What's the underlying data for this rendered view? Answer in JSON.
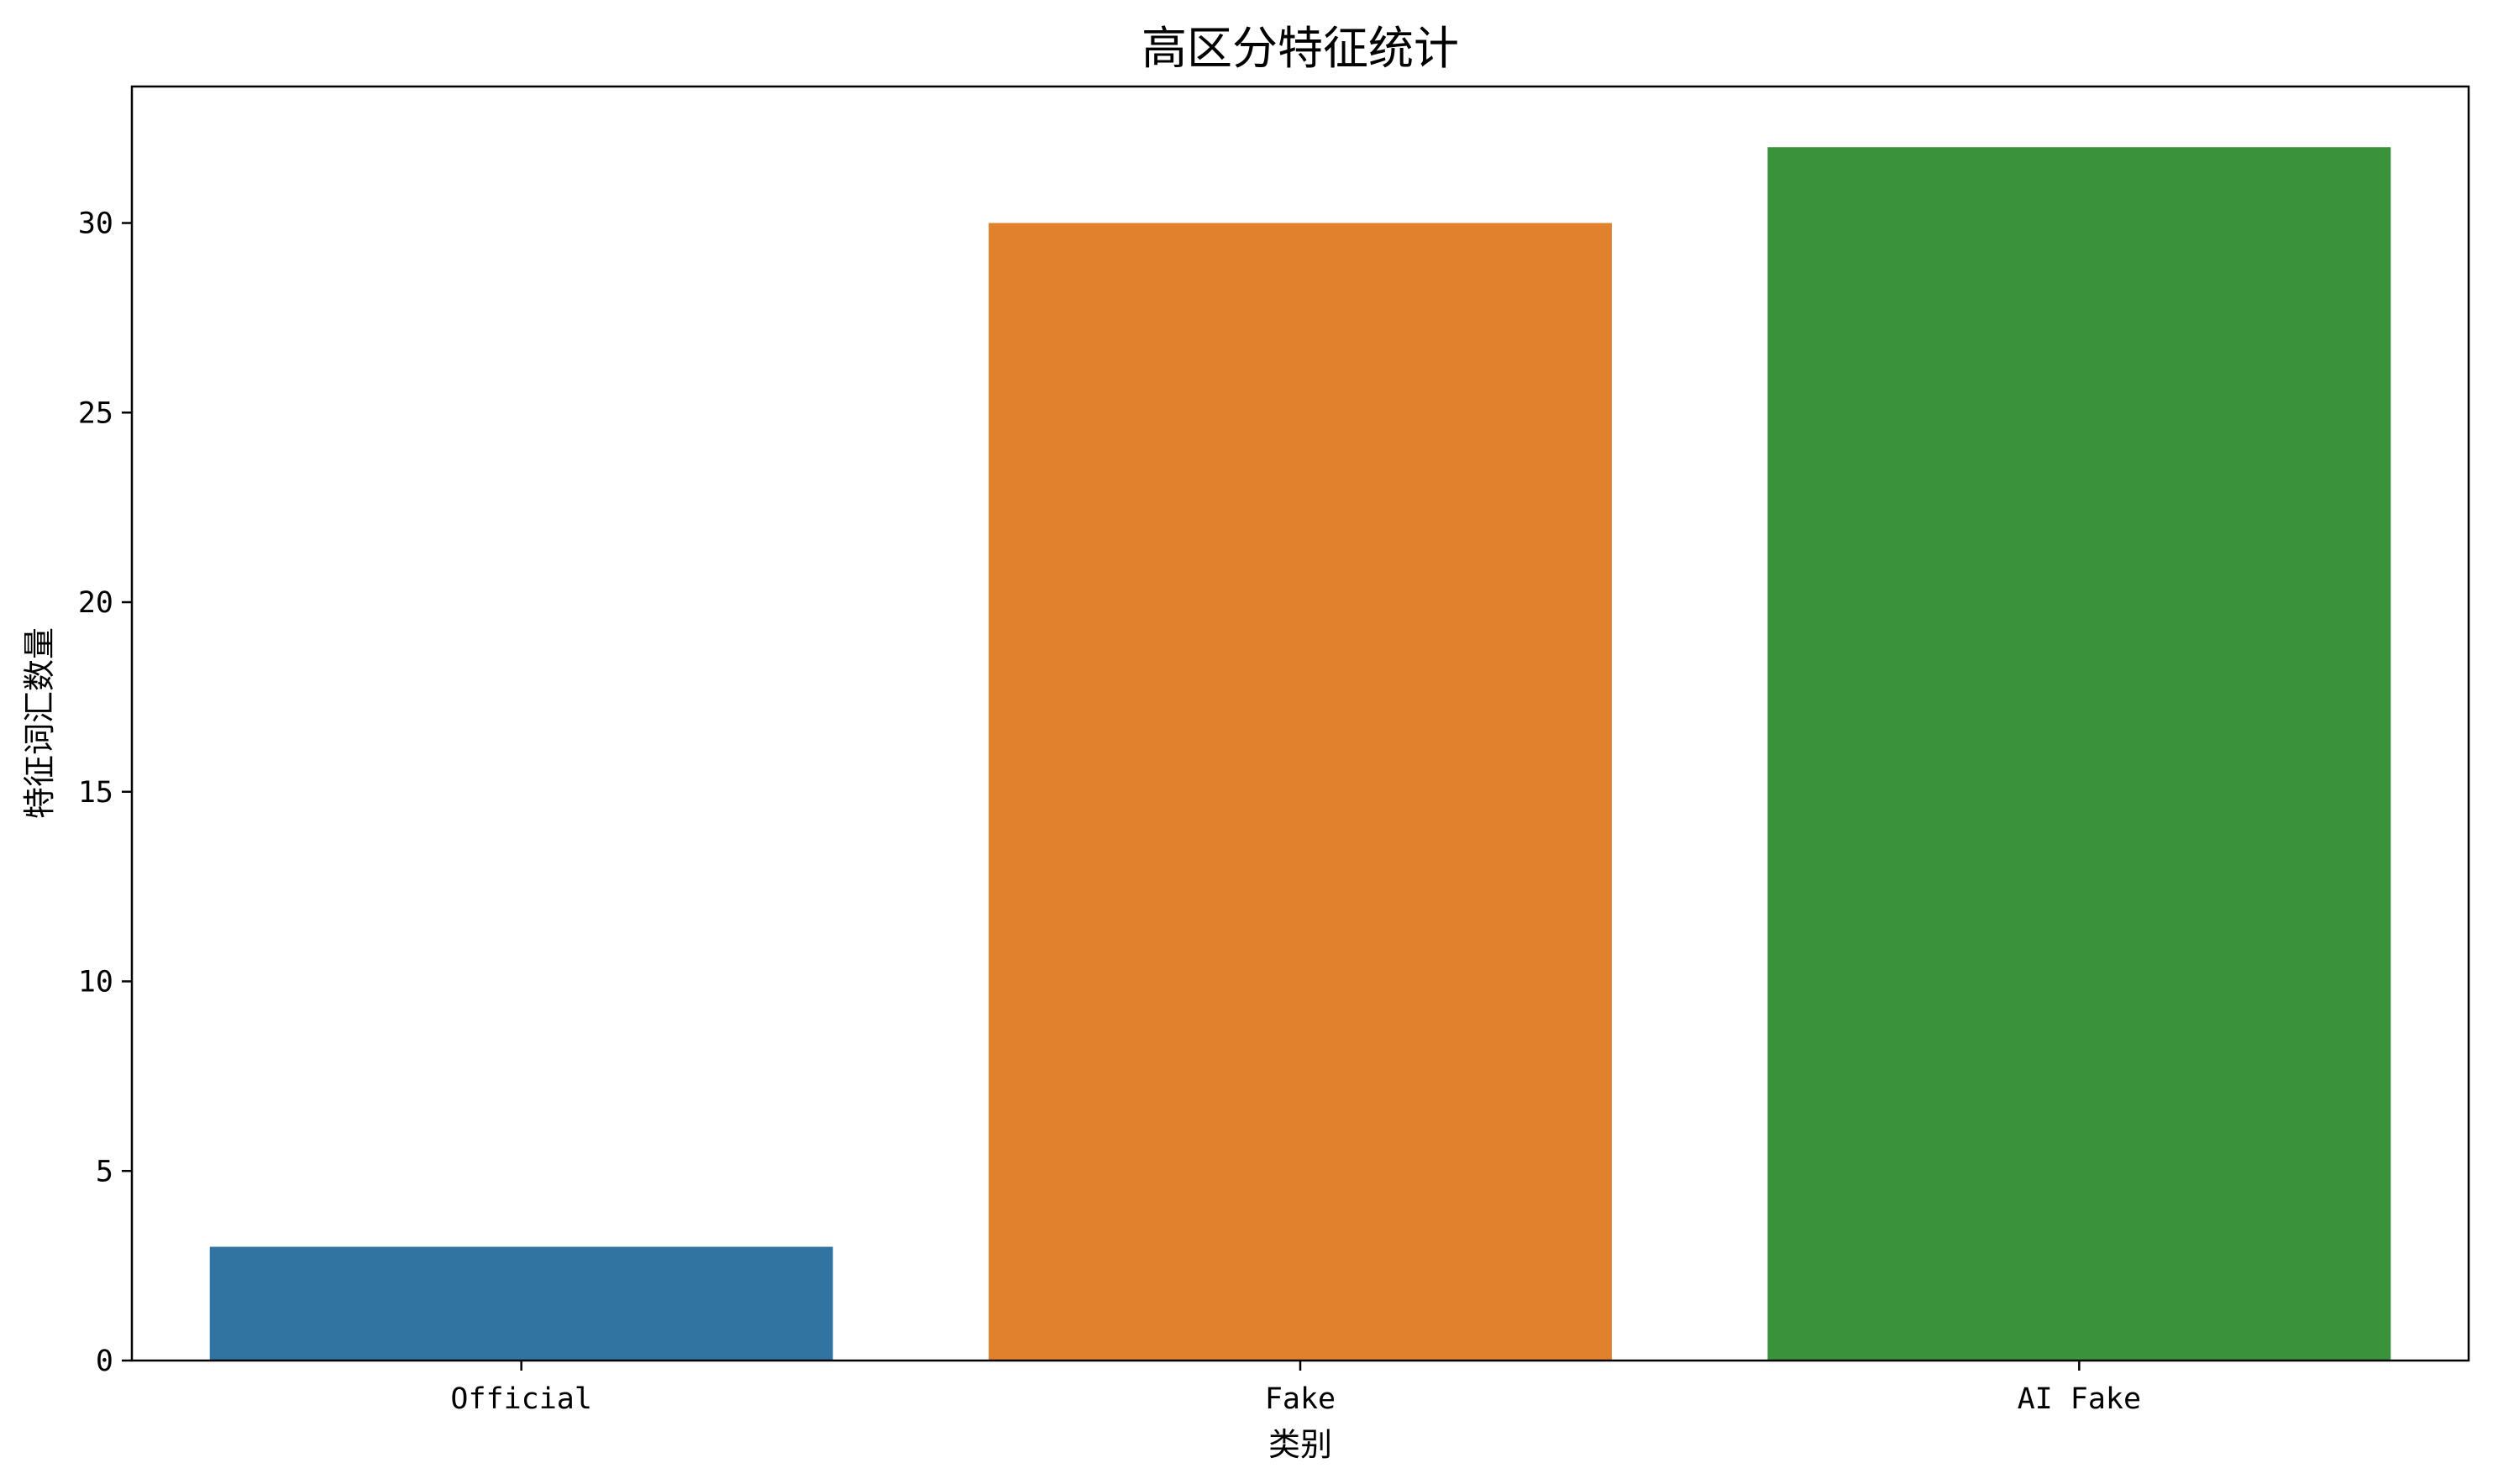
{
  "chart_data": {
    "type": "bar",
    "title": "高区分特征统计",
    "xlabel": "类别",
    "ylabel": "特征词汇数量",
    "categories": [
      "Official",
      "Fake",
      "AI Fake"
    ],
    "values": [
      3,
      30,
      32
    ],
    "colors": [
      "#3274a1",
      "#e1812c",
      "#3a923a"
    ],
    "ylim": [
      0,
      33.6
    ],
    "yticks": [
      0,
      5,
      10,
      15,
      20,
      25,
      30
    ],
    "grid": false,
    "legend": "none"
  }
}
